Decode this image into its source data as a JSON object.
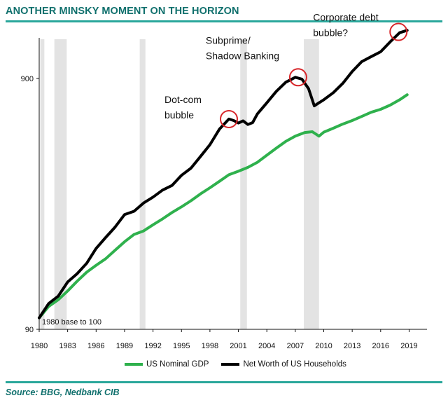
{
  "header": {
    "title": "ANOTHER MINSKY MOMENT ON THE HORIZON"
  },
  "footer": {
    "source": "Source: BBG, Nedbank CIB"
  },
  "colors": {
    "brand": "#10706d",
    "rule": "#2aa79b",
    "gdp": "#2fb14d",
    "networth": "#000000",
    "recession": "#e3e3e3",
    "circle": "#d7262a"
  },
  "chart_data": {
    "type": "line",
    "yscale": "log",
    "ylim": [
      90,
      1800
    ],
    "xlim": [
      1980,
      2019.5
    ],
    "yticks": [
      90,
      900
    ],
    "ytick_labels": [
      "90",
      "900"
    ],
    "xticks": [
      1980,
      1983,
      1986,
      1989,
      1992,
      1995,
      1998,
      2001,
      2004,
      2007,
      2010,
      2013,
      2016,
      2019
    ],
    "xtick_labels": [
      "1980",
      "1983",
      "1986",
      "1989",
      "1992",
      "1995",
      "1998",
      "2001",
      "2004",
      "2007",
      "2010",
      "2013",
      "2016",
      "2019"
    ],
    "grid": false,
    "legend_position": "bottom",
    "recessions": [
      [
        1980.1,
        1980.5
      ],
      [
        1981.6,
        1982.9
      ],
      [
        1990.6,
        1991.2
      ],
      [
        2001.2,
        2001.9
      ],
      [
        2007.9,
        2009.5
      ]
    ],
    "series": [
      {
        "name": "US Nominal GDP",
        "color": "#2fb14d",
        "x": [
          1980,
          1981,
          1982,
          1983,
          1984,
          1985,
          1986,
          1987,
          1988,
          1989,
          1990,
          1991,
          1992,
          1993,
          1994,
          1995,
          1996,
          1997,
          1998,
          1999,
          2000,
          2001,
          2002,
          2003,
          2004,
          2005,
          2006,
          2007,
          2008,
          2008.8,
          2009.5,
          2010,
          2011,
          2012,
          2013,
          2014,
          2015,
          2016,
          2017,
          2018,
          2018.8
        ],
        "values": [
          100,
          111,
          118,
          128,
          140,
          152,
          162,
          172,
          186,
          201,
          215,
          222,
          235,
          248,
          263,
          277,
          293,
          312,
          330,
          350,
          372,
          384,
          398,
          417,
          445,
          475,
          505,
          530,
          548,
          552,
          530,
          550,
          570,
          592,
          612,
          635,
          660,
          678,
          705,
          740,
          775
        ]
      },
      {
        "name": "Net Worth of US Households",
        "color": "#000000",
        "x": [
          1980,
          1981,
          1982,
          1983,
          1984,
          1985,
          1986,
          1987,
          1988,
          1989,
          1990,
          1991,
          1992,
          1993,
          1994,
          1995,
          1996,
          1997,
          1998,
          1999,
          2000,
          2000.5,
          2001,
          2001.5,
          2002,
          2002.5,
          2003,
          2004,
          2005,
          2006,
          2007,
          2007.7,
          2008.4,
          2009,
          2009.5,
          2010,
          2011,
          2012,
          2013,
          2014,
          2015,
          2016,
          2017,
          2018,
          2018.8
        ],
        "values": [
          100,
          114,
          122,
          139,
          150,
          165,
          189,
          209,
          230,
          258,
          266,
          287,
          303,
          323,
          337,
          370,
          395,
          440,
          490,
          565,
          620,
          612,
          598,
          610,
          590,
          600,
          650,
          720,
          800,
          870,
          910,
          895,
          820,
          700,
          720,
          740,
          790,
          860,
          960,
          1050,
          1100,
          1150,
          1260,
          1370,
          1400
        ]
      }
    ],
    "annotations": [
      {
        "text": [
          "Dot-com",
          "bubble"
        ],
        "x": 2000,
        "y": 620
      },
      {
        "text": [
          "Subprime/",
          "Shadow Banking"
        ],
        "x": 2007.3,
        "y": 910
      },
      {
        "text": [
          "Corporate debt",
          "bubble?"
        ],
        "x": 2018.1,
        "y": 1380
      }
    ],
    "base_note": "1980 base to 100"
  }
}
